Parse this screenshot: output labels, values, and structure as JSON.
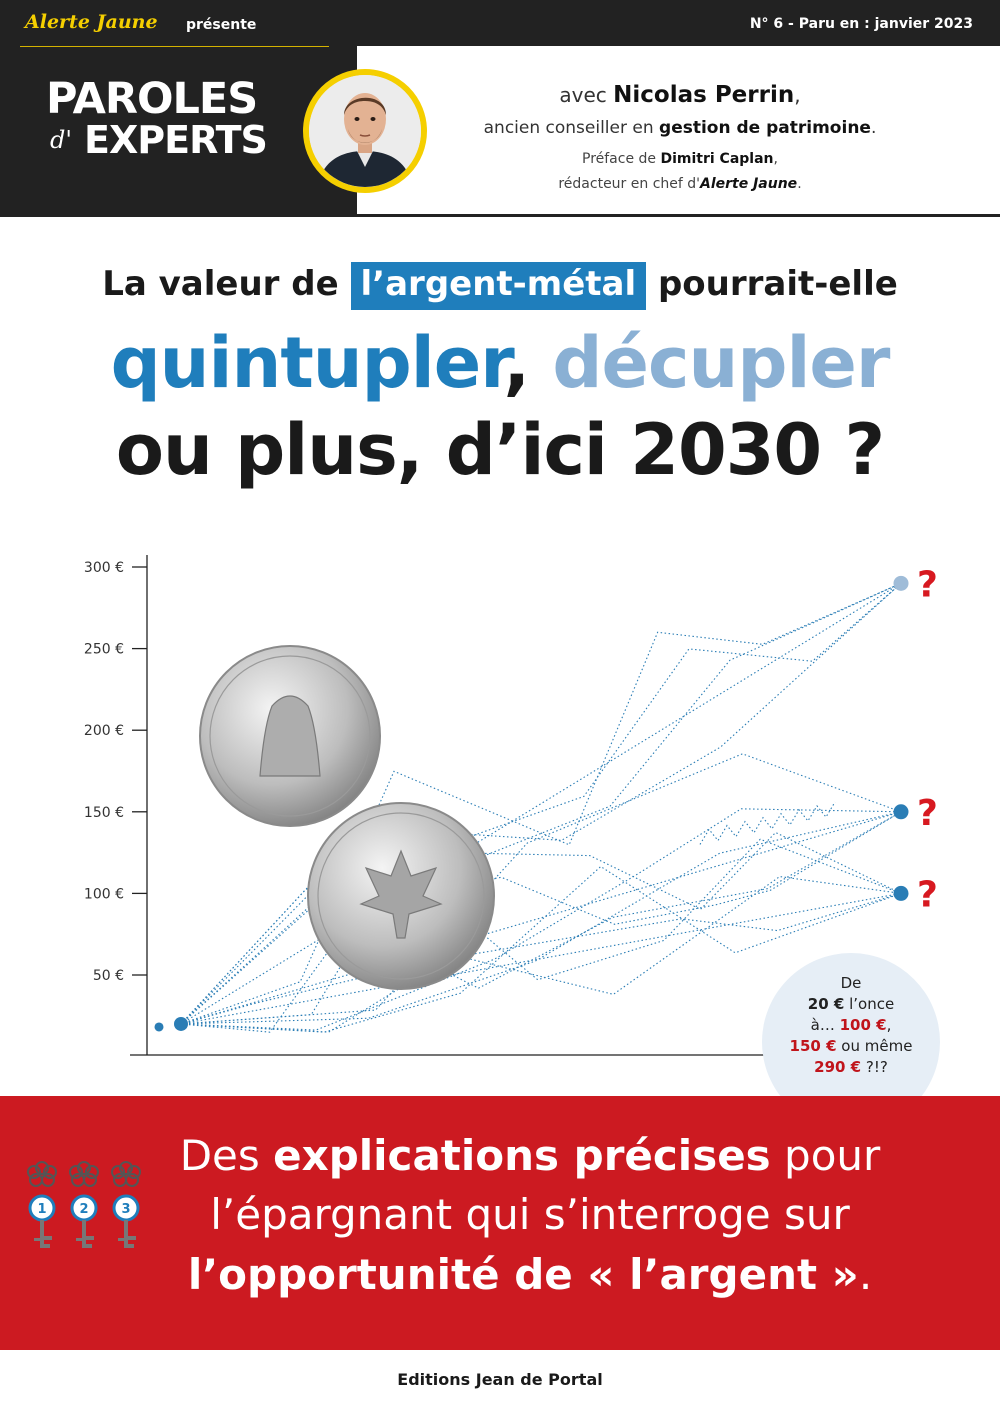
{
  "header": {
    "brand": "Alerte Jaune",
    "presents": "présente",
    "issue": "N° 6 - Paru en : janvier 2023",
    "series_line1": "PAROLES",
    "series_prefix": "d'",
    "series_line2": "EXPERTS",
    "author_intro": "avec",
    "author_name": "Nicolas Perrin",
    "author_role_prefix": "ancien conseiller en",
    "author_role": "gestion de patrimoine",
    "preface_prefix": "Préface de",
    "preface_name": "Dimitri Caplan",
    "preface_role_prefix": "rédacteur en chef d'",
    "preface_role_brand": "Alerte Jaune"
  },
  "headline": {
    "line1_before": "La valeur de",
    "line1_highlight": "l’argent-métal",
    "line1_after": "pourrait-elle",
    "word1": "quintupler",
    "sep": ",",
    "word2": "décupler",
    "line3": "ou plus, d’ici 2030 ?"
  },
  "chart_data": {
    "type": "line",
    "y_ticks": [
      "300 €",
      "250 €",
      "200 €",
      "150 €",
      "100 €",
      "50 €"
    ],
    "y_tick_values": [
      300,
      250,
      200,
      150,
      100,
      50
    ],
    "ylim": [
      0,
      300
    ],
    "start_value": 20,
    "targets": [
      100,
      150,
      290
    ],
    "target_marker": "?",
    "colors": {
      "lines": "#2a7db5",
      "target_high": "#9fbcd8",
      "target": "#2a7db5",
      "question": "#d71920"
    }
  },
  "bubble": {
    "l1": "De",
    "v1": "20 €",
    "l2": " l’once",
    "l3": "à… ",
    "v2": "100 €",
    "l4": ",",
    "v3": "150 €",
    "l5": " ou même",
    "v4": "290 €",
    "l6": " ?!?"
  },
  "banner": {
    "a1": "Des ",
    "b1": "explications précises",
    "a2": " pour",
    "line2": "l’épargnant qui s’interroge sur",
    "line3": "l’opportunité de « l’argent »",
    "line3_end": ".",
    "keys": [
      "1",
      "2",
      "3"
    ]
  },
  "footer": {
    "publisher": "Editions Jean de Portal"
  }
}
